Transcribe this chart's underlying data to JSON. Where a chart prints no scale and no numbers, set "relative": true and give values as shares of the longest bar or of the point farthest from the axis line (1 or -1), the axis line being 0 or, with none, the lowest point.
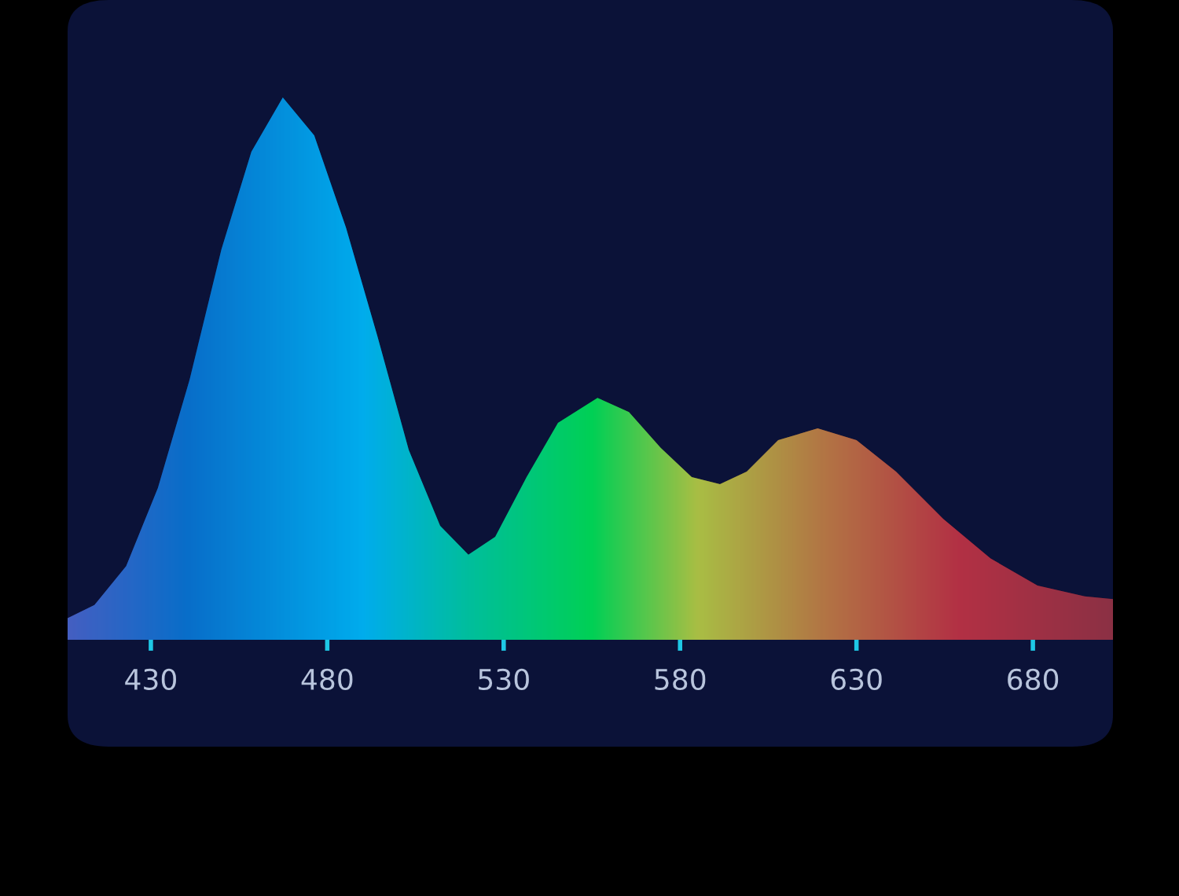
{
  "chart_data": {
    "type": "area",
    "relative": true,
    "xlim": [
      406.4,
      702.7
    ],
    "xticks": [
      430,
      480,
      530,
      580,
      630,
      680
    ],
    "series": [
      {
        "color": "#00a0e0",
        "x": [
          406.4,
          414,
          423,
          432,
          441,
          450,
          458.5,
          467.4,
          476.3,
          485.3,
          494.2,
          503.1,
          512,
          520,
          527.6,
          536.5,
          545.4,
          556.6,
          565.5,
          574.5,
          583.3,
          591.3,
          598.9,
          607.8,
          619,
          630,
          641.2,
          654.6,
          668,
          681.3,
          694.7,
          702.7
        ],
        "values": [
          0.04,
          0.064,
          0.136,
          0.28,
          0.48,
          0.72,
          0.9,
          1.0,
          0.93,
          0.76,
          0.56,
          0.35,
          0.21,
          0.157,
          0.19,
          0.3,
          0.4,
          0.446,
          0.42,
          0.354,
          0.3,
          0.287,
          0.31,
          0.368,
          0.39,
          0.368,
          0.31,
          0.223,
          0.15,
          0.1,
          0.08,
          0.075
        ]
      }
    ]
  }
}
